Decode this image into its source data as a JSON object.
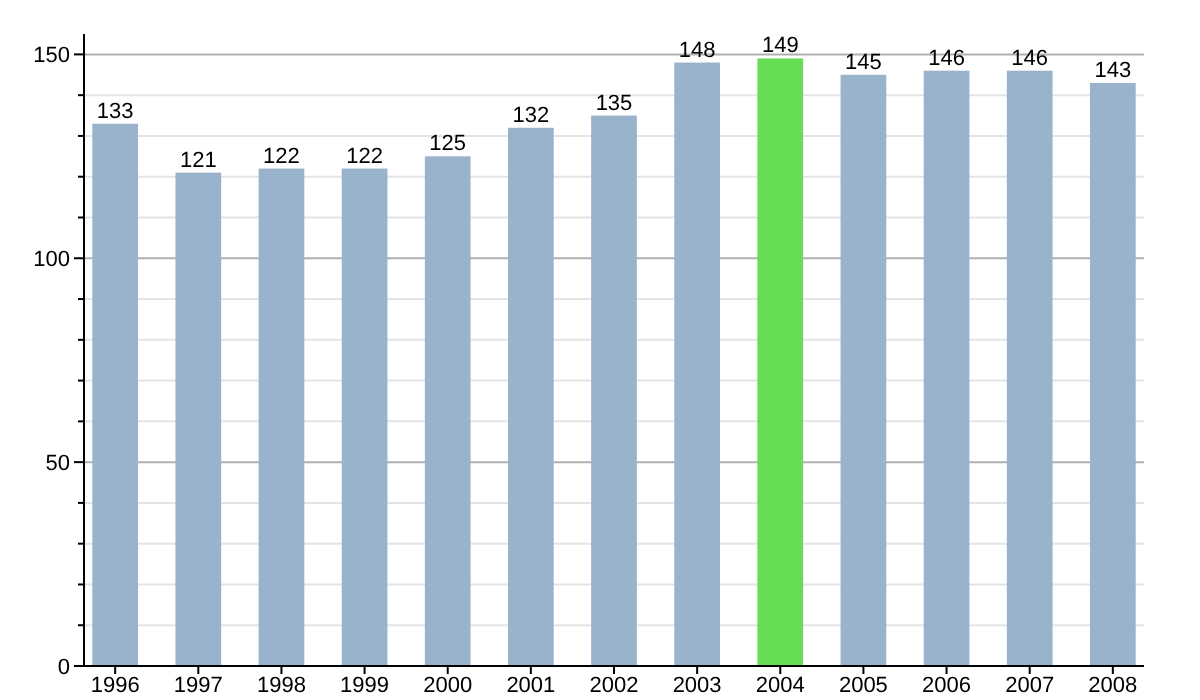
{
  "chart_data": {
    "type": "bar",
    "categories": [
      "1996",
      "1997",
      "1998",
      "1999",
      "2000",
      "2001",
      "2002",
      "2003",
      "2004",
      "2005",
      "2006",
      "2007",
      "2008"
    ],
    "values": [
      133,
      121,
      122,
      122,
      125,
      132,
      135,
      148,
      149,
      145,
      146,
      146,
      143
    ],
    "colors": [
      "#9ab3cc",
      "#9ab3cc",
      "#9ab3cc",
      "#9ab3cc",
      "#9ab3cc",
      "#9ab3cc",
      "#9ab3cc",
      "#9ab3cc",
      "#66dd55",
      "#9ab3cc",
      "#9ab3cc",
      "#9ab3cc",
      "#9ab3cc"
    ],
    "ylim": [
      0,
      155
    ],
    "yticks": [
      0,
      {
        "value": 10,
        "label": null
      },
      {
        "value": 20,
        "label": null
      },
      {
        "value": 30,
        "label": null
      },
      {
        "value": 40,
        "label": null
      },
      50,
      {
        "value": 60,
        "label": null
      },
      {
        "value": 70,
        "label": null
      },
      {
        "value": 80,
        "label": null
      },
      {
        "value": 90,
        "label": null
      },
      100,
      {
        "value": 110,
        "label": null
      },
      {
        "value": 120,
        "label": null
      },
      {
        "value": 130,
        "label": null
      },
      {
        "value": 140,
        "label": null
      },
      150
    ],
    "grid": "y",
    "data_labels": true
  }
}
